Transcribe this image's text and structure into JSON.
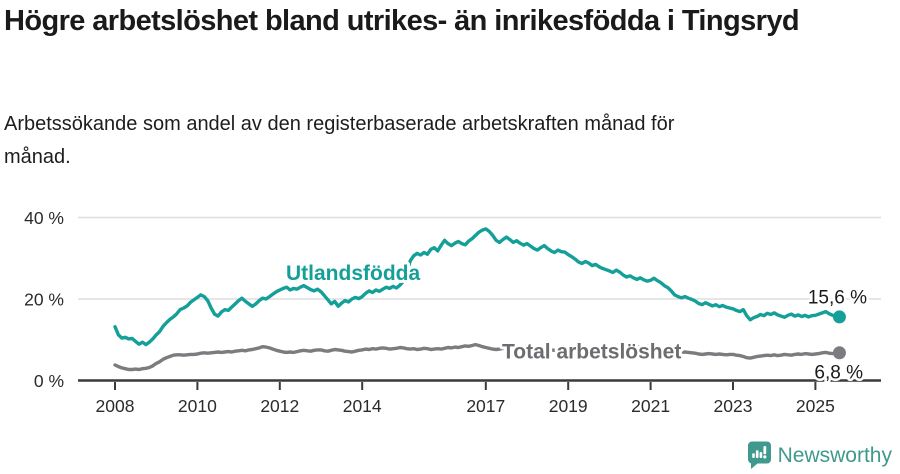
{
  "header": {
    "title": "Högre arbetslöshet bland utrikes- än inrikesfödda i Tingsryd",
    "subtitle": "Arbetssökande som andel av den registerbaserade arbetskraften månad för månad."
  },
  "footer": {
    "brand": "Newsworthy",
    "logo_icon": "newsworthy-speech-bubble-bar-chart-icon",
    "brand_color": "#3f998d"
  },
  "chart_data": {
    "type": "line",
    "title": "Högre arbetslöshet bland utrikes- än inrikesfödda i Tingsryd",
    "subtitle": "Arbetssökande som andel av den registerbaserade arbetskraften månad för månad.",
    "x_unit": "year (monthly data)",
    "x_start": 2008.0,
    "x_step_months": 1,
    "ylim": [
      0,
      43
    ],
    "grid": "horizontal",
    "axis_color": "#3a3a3a",
    "grid_color": "#dedede",
    "tick_label_color": "#2b2b2b",
    "value_label_color": "#1a1a1a",
    "yticks": [
      {
        "value": 0,
        "label": "0 %"
      },
      {
        "value": 20,
        "label": "20 %"
      },
      {
        "value": 40,
        "label": "40 %"
      }
    ],
    "xticks": [
      {
        "value": 2008,
        "label": "2008"
      },
      {
        "value": 2010,
        "label": "2010"
      },
      {
        "value": 2012,
        "label": "2012"
      },
      {
        "value": 2014,
        "label": "2014"
      },
      {
        "value": 2017,
        "label": "2017"
      },
      {
        "value": 2019,
        "label": "2019"
      },
      {
        "value": 2021,
        "label": "2021"
      },
      {
        "value": 2023,
        "label": "2023"
      },
      {
        "value": 2025,
        "label": "2025"
      }
    ],
    "series": [
      {
        "name": "Total arbetslöshet",
        "color": "#7c7c80",
        "label_color": "#6d6d71",
        "end_label": "6,8 %",
        "end_value": 6.8,
        "values": [
          3.8,
          3.4,
          3.1,
          2.9,
          2.7,
          2.7,
          2.8,
          2.7,
          2.9,
          3.0,
          3.2,
          3.6,
          4.2,
          4.6,
          5.2,
          5.6,
          5.9,
          6.2,
          6.3,
          6.3,
          6.2,
          6.3,
          6.4,
          6.4,
          6.5,
          6.7,
          6.8,
          6.7,
          6.8,
          6.9,
          7.0,
          6.9,
          7.0,
          7.1,
          7.0,
          7.2,
          7.3,
          7.4,
          7.3,
          7.5,
          7.6,
          7.8,
          8.0,
          8.3,
          8.2,
          8.0,
          7.7,
          7.4,
          7.2,
          7.0,
          6.9,
          7.0,
          6.9,
          7.1,
          7.3,
          7.4,
          7.3,
          7.2,
          7.4,
          7.5,
          7.5,
          7.3,
          7.2,
          7.4,
          7.6,
          7.5,
          7.4,
          7.2,
          7.1,
          7.0,
          7.2,
          7.4,
          7.5,
          7.7,
          7.6,
          7.8,
          7.7,
          7.9,
          8.0,
          7.9,
          7.7,
          7.8,
          7.9,
          8.1,
          8.0,
          7.8,
          7.7,
          7.8,
          7.6,
          7.7,
          7.9,
          7.8,
          7.6,
          7.7,
          7.8,
          7.7,
          7.9,
          8.1,
          8.0,
          8.2,
          8.1,
          8.3,
          8.5,
          8.4,
          8.6,
          8.8,
          8.6,
          8.3,
          8.1,
          7.9,
          7.7,
          7.6,
          7.7,
          7.9,
          8.0,
          7.8,
          7.7,
          7.8,
          7.6,
          7.7,
          7.8,
          7.6,
          7.4,
          7.3,
          7.4,
          7.6,
          7.7,
          7.5,
          7.4,
          7.5,
          7.3,
          7.4,
          7.4,
          7.2,
          7.1,
          7.0,
          7.1,
          7.3,
          7.4,
          7.2,
          7.1,
          7.2,
          7.3,
          7.2,
          7.3,
          7.4,
          7.8,
          8.2,
          8.5,
          8.7,
          8.6,
          8.4,
          8.3,
          8.2,
          8.3,
          8.4,
          8.4,
          8.2,
          8.0,
          7.8,
          7.6,
          7.4,
          7.2,
          7.1,
          7.0,
          6.9,
          7.0,
          6.9,
          6.8,
          6.7,
          6.5,
          6.4,
          6.5,
          6.6,
          6.5,
          6.4,
          6.5,
          6.4,
          6.3,
          6.4,
          6.4,
          6.2,
          6.1,
          5.9,
          5.6,
          5.5,
          5.7,
          5.9,
          6.0,
          6.1,
          6.2,
          6.1,
          6.3,
          6.1,
          6.2,
          6.4,
          6.3,
          6.2,
          6.4,
          6.5,
          6.4,
          6.6,
          6.5,
          6.4,
          6.5,
          6.6,
          6.8,
          6.9,
          6.7,
          6.6,
          6.7,
          6.8
        ]
      },
      {
        "name": "Utlandsfödda",
        "color": "#14a098",
        "label_color": "#14a098",
        "end_label": "15,6 %",
        "end_value": 15.6,
        "values": [
          13.2,
          11.2,
          10.4,
          10.6,
          10.2,
          10.3,
          9.6,
          8.9,
          9.4,
          8.8,
          9.4,
          10.2,
          11.2,
          12.0,
          13.3,
          14.2,
          15.0,
          15.6,
          16.4,
          17.4,
          17.8,
          18.3,
          19.2,
          19.8,
          20.4,
          21.0,
          20.6,
          19.6,
          17.8,
          16.3,
          15.8,
          16.8,
          17.4,
          17.2,
          18.0,
          18.8,
          19.6,
          20.2,
          19.4,
          18.8,
          18.2,
          18.8,
          19.6,
          20.2,
          20.0,
          20.6,
          21.2,
          21.8,
          22.2,
          22.6,
          22.9,
          22.2,
          22.6,
          22.4,
          22.9,
          23.3,
          22.8,
          22.3,
          22.0,
          22.4,
          21.8,
          20.8,
          19.8,
          18.8,
          19.4,
          18.2,
          19.0,
          19.6,
          19.3,
          20.0,
          20.4,
          20.1,
          20.6,
          21.4,
          22.0,
          21.6,
          22.2,
          21.9,
          22.4,
          22.9,
          22.6,
          23.1,
          22.7,
          23.4,
          24.4,
          26.6,
          29.4,
          30.6,
          31.2,
          30.8,
          31.4,
          31.0,
          32.2,
          32.6,
          31.8,
          33.2,
          34.4,
          33.6,
          33.1,
          33.7,
          34.1,
          33.6,
          33.3,
          34.2,
          34.8,
          35.6,
          36.4,
          36.9,
          37.2,
          36.6,
          35.6,
          34.4,
          33.9,
          34.6,
          35.2,
          34.6,
          33.9,
          34.3,
          33.7,
          33.2,
          33.6,
          33.0,
          32.4,
          32.0,
          32.6,
          33.1,
          32.4,
          31.8,
          31.4,
          32.0,
          31.6,
          31.5,
          30.9,
          30.4,
          29.8,
          29.1,
          28.7,
          29.2,
          28.8,
          28.2,
          28.5,
          27.9,
          27.5,
          27.2,
          26.9,
          26.5,
          27.1,
          26.6,
          25.9,
          25.4,
          25.7,
          25.2,
          24.8,
          25.2,
          24.7,
          24.4,
          24.6,
          25.1,
          24.5,
          24.0,
          23.3,
          22.8,
          22.0,
          21.0,
          20.6,
          20.3,
          20.6,
          20.2,
          19.9,
          19.5,
          18.9,
          18.6,
          19.1,
          18.7,
          18.3,
          18.6,
          18.1,
          18.4,
          18.0,
          17.8,
          17.6,
          17.2,
          16.9,
          17.4,
          15.9,
          14.9,
          15.4,
          15.7,
          16.2,
          15.9,
          16.5,
          16.2,
          16.6,
          16.1,
          15.8,
          15.5,
          16.0,
          16.3,
          15.8,
          16.1,
          15.7,
          16.0,
          15.6,
          15.9,
          16.0,
          16.3,
          16.6,
          16.9,
          16.4,
          16.0,
          15.8,
          15.6
        ]
      }
    ]
  }
}
